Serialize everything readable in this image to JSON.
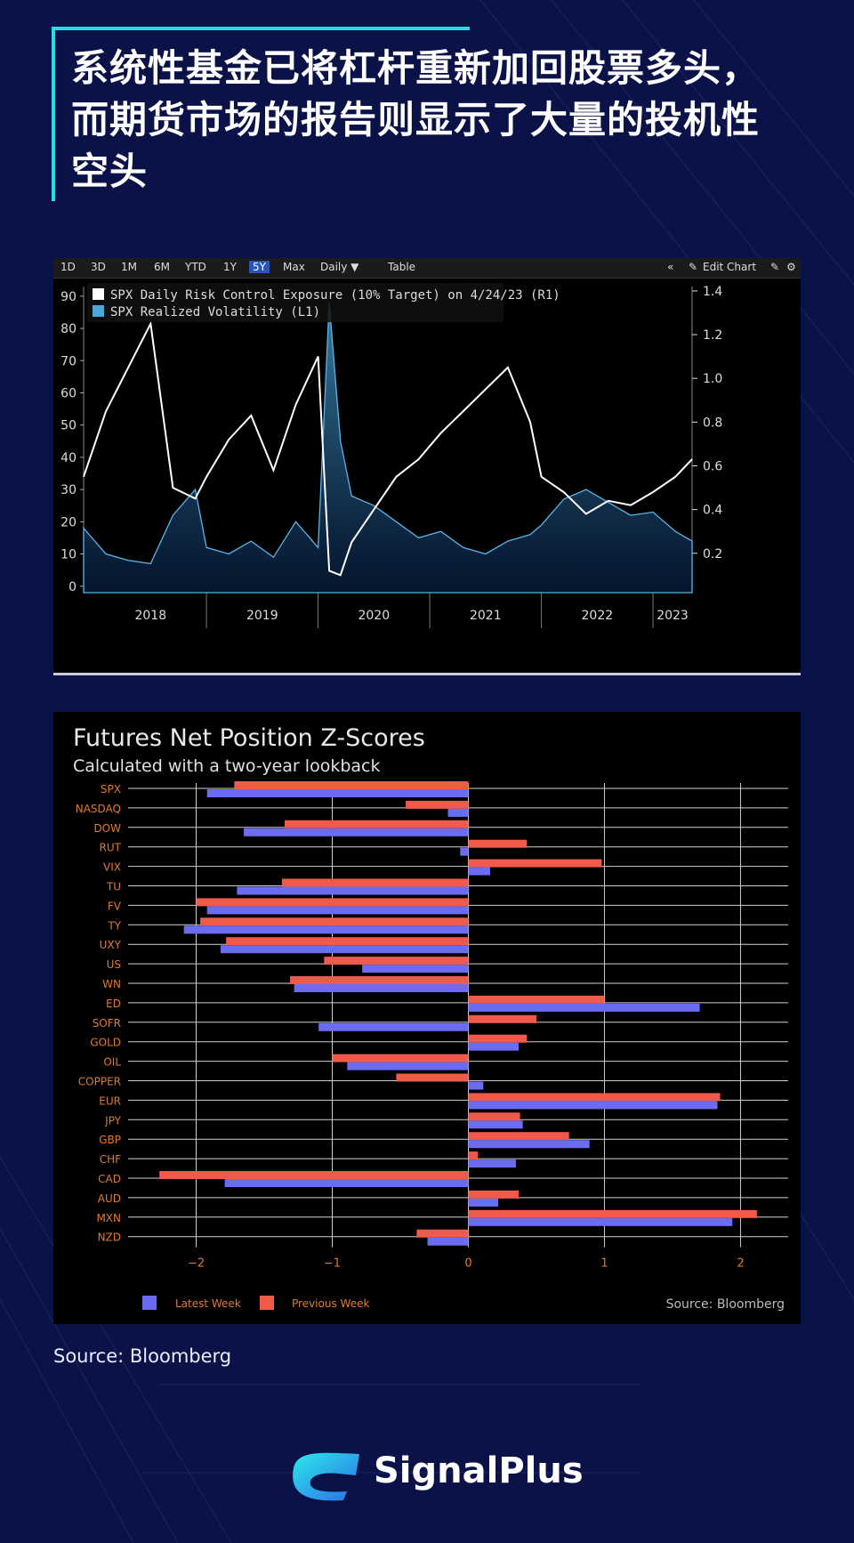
{
  "header": {
    "title": "系统性基金已将杠杆重新加回股票多头，而期货市场的报告则显示了大量的投机性空头"
  },
  "colors": {
    "background": "#0b1247",
    "accent": "#22e0e8",
    "latest_week": "#6c6cf0",
    "previous_week": "#ef5a4a",
    "exposure_line": "#ffffff",
    "volatility_fill": "#4aa8d8"
  },
  "bloomberg_toolbar": {
    "ranges": [
      "1D",
      "3D",
      "1M",
      "6M",
      "YTD",
      "1Y",
      "5Y",
      "Max"
    ],
    "active_range": "5Y",
    "frequency": "Daily ▼",
    "table_label": "Table",
    "edit_label": "Edit Chart"
  },
  "chart_data": [
    {
      "type": "line",
      "legend_placement": "top-left",
      "x_tick_labels": [
        "2018",
        "2019",
        "2020",
        "2021",
        "2022",
        "2023"
      ],
      "y_left_ticks": [
        0,
        10,
        20,
        30,
        40,
        50,
        60,
        70,
        80,
        90
      ],
      "y_right_ticks": [
        0.2,
        0.4,
        0.6,
        0.8,
        1.0,
        1.2,
        1.4
      ],
      "ylim_left": [
        -2,
        93
      ],
      "ylim_right": [
        0.02,
        1.42
      ],
      "x": [
        2017.9,
        2018.1,
        2018.3,
        2018.5,
        2018.7,
        2018.9,
        2019.0,
        2019.2,
        2019.4,
        2019.6,
        2019.8,
        2020.0,
        2020.1,
        2020.2,
        2020.3,
        2020.5,
        2020.7,
        2020.9,
        2021.1,
        2021.3,
        2021.5,
        2021.7,
        2021.9,
        2022.0,
        2022.2,
        2022.4,
        2022.6,
        2022.8,
        2023.0,
        2023.2,
        2023.35
      ],
      "series": [
        {
          "name": "SPX Daily Risk Control Exposure (10% Target) on 4/24/23 (R1)",
          "axis": "right",
          "values": [
            0.55,
            0.85,
            1.05,
            1.25,
            0.5,
            0.45,
            0.55,
            0.72,
            0.83,
            0.58,
            0.88,
            1.1,
            0.12,
            0.1,
            0.25,
            0.4,
            0.55,
            0.63,
            0.75,
            0.85,
            0.95,
            1.05,
            0.8,
            0.55,
            0.48,
            0.38,
            0.44,
            0.42,
            0.48,
            0.55,
            0.63
          ]
        },
        {
          "name": "SPX Realized Volatility (L1)",
          "axis": "left",
          "values": [
            18,
            10,
            8,
            7,
            22,
            30,
            12,
            10,
            14,
            9,
            20,
            12,
            88,
            45,
            28,
            25,
            20,
            15,
            17,
            12,
            10,
            14,
            16,
            19,
            27,
            30,
            26,
            22,
            23,
            17,
            14
          ]
        }
      ]
    },
    {
      "type": "bar",
      "orientation": "horizontal",
      "title": "Futures Net Position Z-Scores",
      "subtitle": "Calculated with a two-year lookback",
      "source": "Source: Bloomberg",
      "xlim": [
        -2.5,
        2.35
      ],
      "x_ticks": [
        -2,
        -1,
        0,
        1,
        2
      ],
      "x_tick_labels": [
        "−2",
        "−1",
        "0",
        "1",
        "2"
      ],
      "legend_placement": "bottom-left",
      "categories": [
        "SPX",
        "NASDAQ",
        "DOW",
        "RUT",
        "VIX",
        "TU",
        "FV",
        "TY",
        "UXY",
        "US",
        "WN",
        "ED",
        "SOFR",
        "GOLD",
        "OIL",
        "COPPER",
        "EUR",
        "JPY",
        "GBP",
        "CHF",
        "CAD",
        "AUD",
        "MXN",
        "NZD"
      ],
      "series": [
        {
          "name": "Previous Week",
          "values": [
            -1.72,
            -0.46,
            -1.35,
            0.43,
            0.98,
            -1.37,
            -2.0,
            -1.97,
            -1.78,
            -1.06,
            -1.31,
            1.0,
            0.5,
            0.43,
            -1.0,
            -0.53,
            1.85,
            0.38,
            0.74,
            0.07,
            -2.27,
            0.37,
            2.12,
            -0.38
          ]
        },
        {
          "name": "Latest Week",
          "values": [
            -1.92,
            -0.15,
            -1.65,
            -0.06,
            0.16,
            -1.7,
            -1.92,
            -2.09,
            -1.82,
            -0.78,
            -1.28,
            1.7,
            -1.1,
            0.37,
            -0.89,
            0.11,
            1.83,
            0.4,
            0.89,
            0.35,
            -1.79,
            0.22,
            1.94,
            -0.3
          ]
        }
      ]
    }
  ],
  "footer": {
    "source": "Source: Bloomberg",
    "brand": "SignalPlus"
  }
}
